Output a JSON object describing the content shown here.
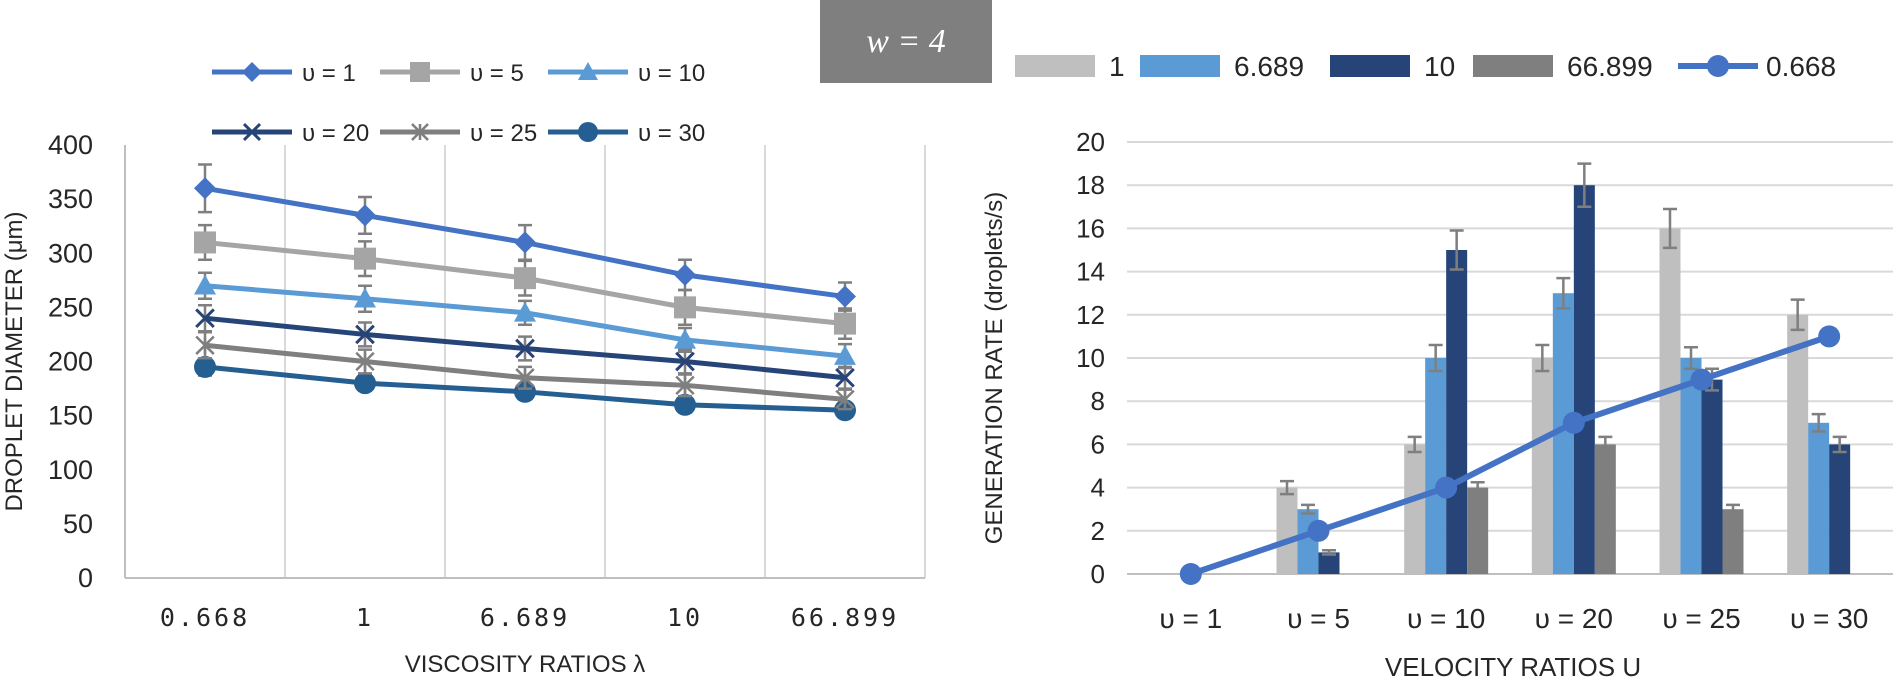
{
  "panel_label": "w = 4",
  "chart_data": [
    {
      "type": "line",
      "title": "",
      "xlabel": "VISCOSITY RATIOS λ",
      "ylabel": "DROPLET DIAMETER (μm)",
      "categories": [
        "0.668",
        "1",
        "6.689",
        "10",
        "66.899"
      ],
      "ylim": [
        0,
        400
      ],
      "yticks": [
        "0",
        "50",
        "100",
        "150",
        "200",
        "250",
        "300",
        "350",
        "400"
      ],
      "grid": "vertical",
      "legend_position": "top",
      "series": [
        {
          "name": "υ = 1",
          "values": [
            360,
            335,
            310,
            280,
            260
          ],
          "errors": [
            22,
            17,
            16,
            14,
            13
          ],
          "color": "#4472C4",
          "marker": "diamond"
        },
        {
          "name": "υ = 5",
          "values": [
            310,
            295,
            277,
            250,
            235
          ],
          "errors": [
            16,
            16,
            16,
            16,
            14
          ],
          "color": "#A5A5A5",
          "marker": "square"
        },
        {
          "name": "υ = 10",
          "values": [
            270,
            258,
            245,
            220,
            205
          ],
          "errors": [
            12,
            12,
            11,
            11,
            11
          ],
          "color": "#5B9BD5",
          "marker": "triangle"
        },
        {
          "name": "υ = 20",
          "values": [
            240,
            225,
            212,
            200,
            185
          ],
          "errors": [
            12,
            11,
            11,
            11,
            10
          ],
          "color": "#264478",
          "marker": "x"
        },
        {
          "name": "υ = 25",
          "values": [
            215,
            200,
            185,
            178,
            165
          ],
          "errors": [
            12,
            11,
            10,
            10,
            9
          ],
          "color": "#7F7F7F",
          "marker": "star"
        },
        {
          "name": "υ = 30",
          "values": [
            195,
            180,
            172,
            160,
            155
          ],
          "errors": [
            8,
            7,
            7,
            7,
            6
          ],
          "color": "#255E91",
          "marker": "circle"
        }
      ]
    },
    {
      "type": "bar",
      "title": "",
      "xlabel": "VELOCITY RATIOS U",
      "ylabel": "GENERATION RATE (droplets/s)",
      "categories": [
        "υ = 1",
        "υ = 5",
        "υ = 10",
        "υ = 20",
        "υ = 25",
        "υ = 30"
      ],
      "ylim": [
        0,
        20
      ],
      "yticks": [
        "0",
        "2",
        "4",
        "6",
        "8",
        "10",
        "12",
        "14",
        "16",
        "18",
        "20"
      ],
      "grid": "horizontal",
      "legend_position": "top",
      "series": [
        {
          "name": "1",
          "type": "bar",
          "values": [
            0,
            4,
            6,
            10,
            16,
            12
          ],
          "errors": [
            0,
            0.3,
            0.35,
            0.6,
            0.9,
            0.7
          ],
          "color": "#BFBFBF"
        },
        {
          "name": "6.689",
          "type": "bar",
          "values": [
            0,
            3,
            10,
            13,
            10,
            7
          ],
          "errors": [
            0,
            0.2,
            0.6,
            0.7,
            0.5,
            0.4
          ],
          "color": "#5B9BD5"
        },
        {
          "name": "10",
          "type": "bar",
          "values": [
            0,
            1,
            15,
            18,
            9,
            6
          ],
          "errors": [
            0,
            0.1,
            0.9,
            1.0,
            0.5,
            0.35
          ],
          "color": "#264478"
        },
        {
          "name": "66.899",
          "type": "bar",
          "values": [
            0,
            0,
            4,
            6,
            3,
            0
          ],
          "errors": [
            0,
            0,
            0.25,
            0.35,
            0.2,
            0
          ],
          "color": "#7F7F7F"
        },
        {
          "name": "0.668",
          "type": "line",
          "values": [
            0,
            2,
            4,
            7,
            9,
            11
          ],
          "color": "#4472C4",
          "marker": "circle"
        }
      ]
    }
  ]
}
